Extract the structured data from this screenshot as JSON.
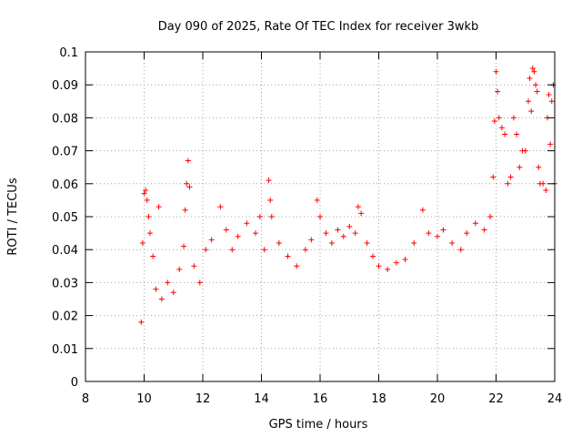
{
  "chart_data": {
    "type": "scatter",
    "title": "Day 090 of 2025, Rate Of TEC Index for receiver 3wkb",
    "xlabel": "GPS time / hours",
    "ylabel": "ROTI / TECUs",
    "xlim": [
      8,
      24
    ],
    "ylim": [
      0,
      0.1
    ],
    "xticks": [
      8,
      10,
      12,
      14,
      16,
      18,
      20,
      22,
      24
    ],
    "xtick_labels": [
      "8",
      "10",
      "12",
      "14",
      "16",
      "18",
      "20",
      "22",
      "24"
    ],
    "yticks": [
      0,
      0.01,
      0.02,
      0.03,
      0.04,
      0.05,
      0.06,
      0.07,
      0.08,
      0.09,
      0.1
    ],
    "ytick_labels": [
      "0",
      "0.01",
      "0.02",
      "0.03",
      "0.04",
      "0.05",
      "0.06",
      "0.07",
      "0.08",
      "0.09",
      "0.1"
    ],
    "grid": true,
    "marker": "+",
    "color": "#ff0000",
    "series": [
      {
        "points": [
          [
            9.9,
            0.018
          ],
          [
            9.95,
            0.042
          ],
          [
            10.0,
            0.057
          ],
          [
            10.05,
            0.058
          ],
          [
            10.1,
            0.055
          ],
          [
            10.15,
            0.05
          ],
          [
            10.2,
            0.045
          ],
          [
            10.3,
            0.038
          ],
          [
            10.4,
            0.028
          ],
          [
            10.5,
            0.053
          ],
          [
            10.6,
            0.025
          ],
          [
            10.8,
            0.03
          ],
          [
            11.0,
            0.027
          ],
          [
            11.2,
            0.034
          ],
          [
            11.35,
            0.041
          ],
          [
            11.4,
            0.052
          ],
          [
            11.45,
            0.06
          ],
          [
            11.5,
            0.067
          ],
          [
            11.55,
            0.059
          ],
          [
            11.7,
            0.035
          ],
          [
            11.9,
            0.03
          ],
          [
            12.1,
            0.04
          ],
          [
            12.3,
            0.043
          ],
          [
            12.6,
            0.053
          ],
          [
            12.8,
            0.046
          ],
          [
            13.0,
            0.04
          ],
          [
            13.2,
            0.044
          ],
          [
            13.5,
            0.048
          ],
          [
            13.8,
            0.045
          ],
          [
            13.95,
            0.05
          ],
          [
            14.1,
            0.04
          ],
          [
            14.25,
            0.061
          ],
          [
            14.3,
            0.055
          ],
          [
            14.35,
            0.05
          ],
          [
            14.6,
            0.042
          ],
          [
            14.9,
            0.038
          ],
          [
            15.2,
            0.035
          ],
          [
            15.5,
            0.04
          ],
          [
            15.7,
            0.043
          ],
          [
            15.9,
            0.055
          ],
          [
            16.0,
            0.05
          ],
          [
            16.2,
            0.045
          ],
          [
            16.4,
            0.042
          ],
          [
            16.6,
            0.046
          ],
          [
            16.8,
            0.044
          ],
          [
            17.0,
            0.047
          ],
          [
            17.2,
            0.045
          ],
          [
            17.3,
            0.053
          ],
          [
            17.4,
            0.051
          ],
          [
            17.6,
            0.042
          ],
          [
            17.8,
            0.038
          ],
          [
            18.0,
            0.035
          ],
          [
            18.3,
            0.034
          ],
          [
            18.6,
            0.036
          ],
          [
            18.9,
            0.037
          ],
          [
            19.2,
            0.042
          ],
          [
            19.5,
            0.052
          ],
          [
            19.7,
            0.045
          ],
          [
            20.0,
            0.044
          ],
          [
            20.2,
            0.046
          ],
          [
            20.5,
            0.042
          ],
          [
            20.8,
            0.04
          ],
          [
            21.0,
            0.045
          ],
          [
            21.3,
            0.048
          ],
          [
            21.6,
            0.046
          ],
          [
            21.8,
            0.05
          ],
          [
            21.9,
            0.062
          ],
          [
            21.95,
            0.079
          ],
          [
            22.0,
            0.094
          ],
          [
            22.05,
            0.088
          ],
          [
            22.1,
            0.08
          ],
          [
            22.2,
            0.077
          ],
          [
            22.3,
            0.075
          ],
          [
            22.4,
            0.06
          ],
          [
            22.5,
            0.062
          ],
          [
            22.6,
            0.08
          ],
          [
            22.7,
            0.075
          ],
          [
            22.8,
            0.065
          ],
          [
            22.9,
            0.07
          ],
          [
            23.0,
            0.07
          ],
          [
            23.1,
            0.085
          ],
          [
            23.15,
            0.092
          ],
          [
            23.2,
            0.082
          ],
          [
            23.25,
            0.095
          ],
          [
            23.3,
            0.094
          ],
          [
            23.35,
            0.09
          ],
          [
            23.4,
            0.088
          ],
          [
            23.45,
            0.065
          ],
          [
            23.5,
            0.06
          ],
          [
            23.6,
            0.06
          ],
          [
            23.7,
            0.058
          ],
          [
            23.75,
            0.08
          ],
          [
            23.8,
            0.087
          ],
          [
            23.85,
            0.072
          ],
          [
            23.9,
            0.085
          ],
          [
            23.95,
            0.09
          ],
          [
            24.0,
            0.06
          ]
        ]
      }
    ]
  }
}
